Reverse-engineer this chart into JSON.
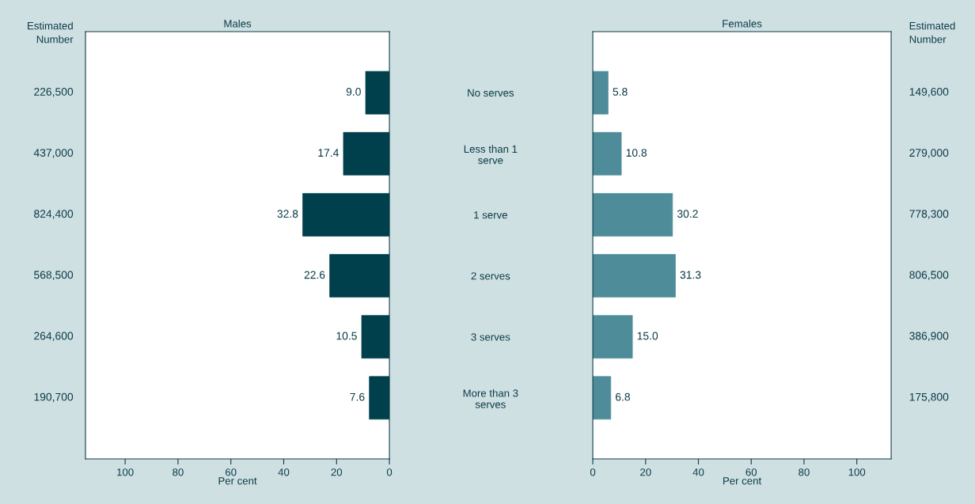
{
  "chart_data": [
    {
      "type": "bar",
      "orientation": "horizontal",
      "title": "Males",
      "xlabel": "Per cent",
      "categories": [
        "No serves",
        "Less than 1\nserve",
        "1 serve",
        "2 serves",
        "3 serves",
        "More than 3\nserves"
      ],
      "values": [
        9.0,
        17.4,
        32.8,
        22.6,
        10.5,
        7.6
      ],
      "color": "#003f4c",
      "value_labels": [
        "9.0",
        "17.4",
        "32.8",
        "22.6",
        "10.5",
        "7.6"
      ],
      "xlim": [
        115,
        0
      ],
      "xticks": [
        100,
        80,
        60,
        40,
        20,
        0
      ],
      "grid": false,
      "annotations": [
        "Estimated\nNumber",
        "226,500",
        "437,000",
        "824,400",
        "568,500",
        "264,600",
        "190,700"
      ]
    },
    {
      "type": "bar",
      "orientation": "horizontal",
      "title": "Females",
      "xlabel": "Per cent",
      "values": [
        5.8,
        10.8,
        30.2,
        31.3,
        15.0,
        6.8
      ],
      "color": "#4e8c99",
      "value_labels": [
        "5.8",
        "10.8",
        "30.2",
        "31.3",
        "15.0",
        "6.8"
      ],
      "xlim": [
        0,
        113
      ],
      "xticks": [
        0,
        20,
        40,
        60,
        80,
        100
      ],
      "grid": false,
      "annotations": [
        "Estimated\nNumber",
        "149,600",
        "279,000",
        "778,300",
        "806,500",
        "386,900",
        "175,800"
      ]
    }
  ]
}
